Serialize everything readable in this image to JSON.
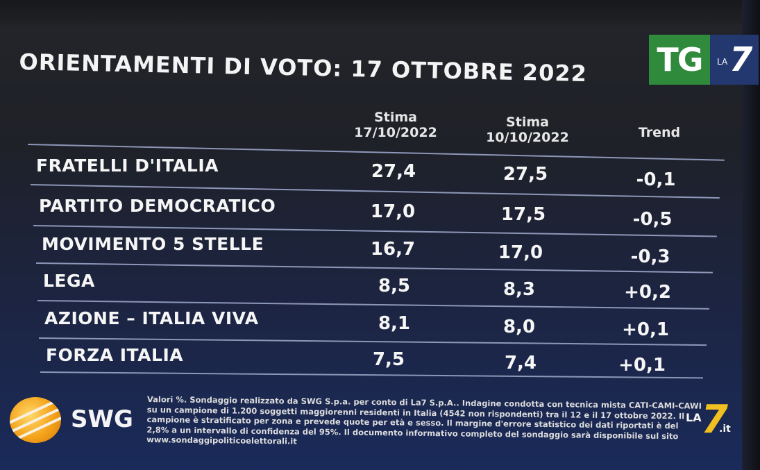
{
  "title": "ORIENTAMENTI DI VOTO: 17 OTTOBRE 2022",
  "broadcaster_logo": {
    "tg": "TG",
    "la": "LA",
    "seven": "7"
  },
  "columns": {
    "estimate_current": {
      "line1": "Stima",
      "line2": "17/10/2022"
    },
    "estimate_previous": {
      "line1": "Stima",
      "line2": "10/10/2022"
    },
    "trend": "Trend"
  },
  "rows": [
    {
      "party": "FRATELLI D'ITALIA",
      "current": "27,4",
      "previous": "27,5",
      "trend": "-0,1"
    },
    {
      "party": "PARTITO DEMOCRATICO",
      "current": "17,0",
      "previous": "17,5",
      "trend": "-0,5"
    },
    {
      "party": "MOVIMENTO 5 STELLE",
      "current": "16,7",
      "previous": "17,0",
      "trend": "-0,3"
    },
    {
      "party": "LEGA",
      "current": "8,5",
      "previous": "8,3",
      "trend": "+0,2"
    },
    {
      "party": "AZIONE – ITALIA VIVA",
      "current": "8,1",
      "previous": "8,0",
      "trend": "+0,1"
    },
    {
      "party": "FORZA ITALIA",
      "current": "7,5",
      "previous": "7,4",
      "trend": "+0,1"
    }
  ],
  "pollster_logo": "SWG",
  "footnote": "Valori %. Sondaggio realizzato da SWG S.p.a. per conto di La7 S.p.A.. Indagine condotta con tecnica mista CATI-CAMI-CAWI su un campione di 1.200 soggetti maggiorenni residenti in Italia (4542 non rispondenti) tra il 12 e il 17 ottobre 2022. Il campione è stratificato per zona e prevede quote per età e sesso. Il margine d'errore statistico dei dati riportati è del 2,8% a un intervallo di confidenza del 95%. Il documento informativo completo del sondaggio sarà disponibile sul sito www.sondaggipoliticoelettorali.it",
  "channel_bug": {
    "la": "LA",
    "seven": "7",
    "suffix": ".it"
  },
  "colors": {
    "tg_green": "#2f8a3c",
    "la7_blue": "#23386f",
    "la7_yellow": "#f0c020",
    "swg_orange": "#f4a21a"
  }
}
